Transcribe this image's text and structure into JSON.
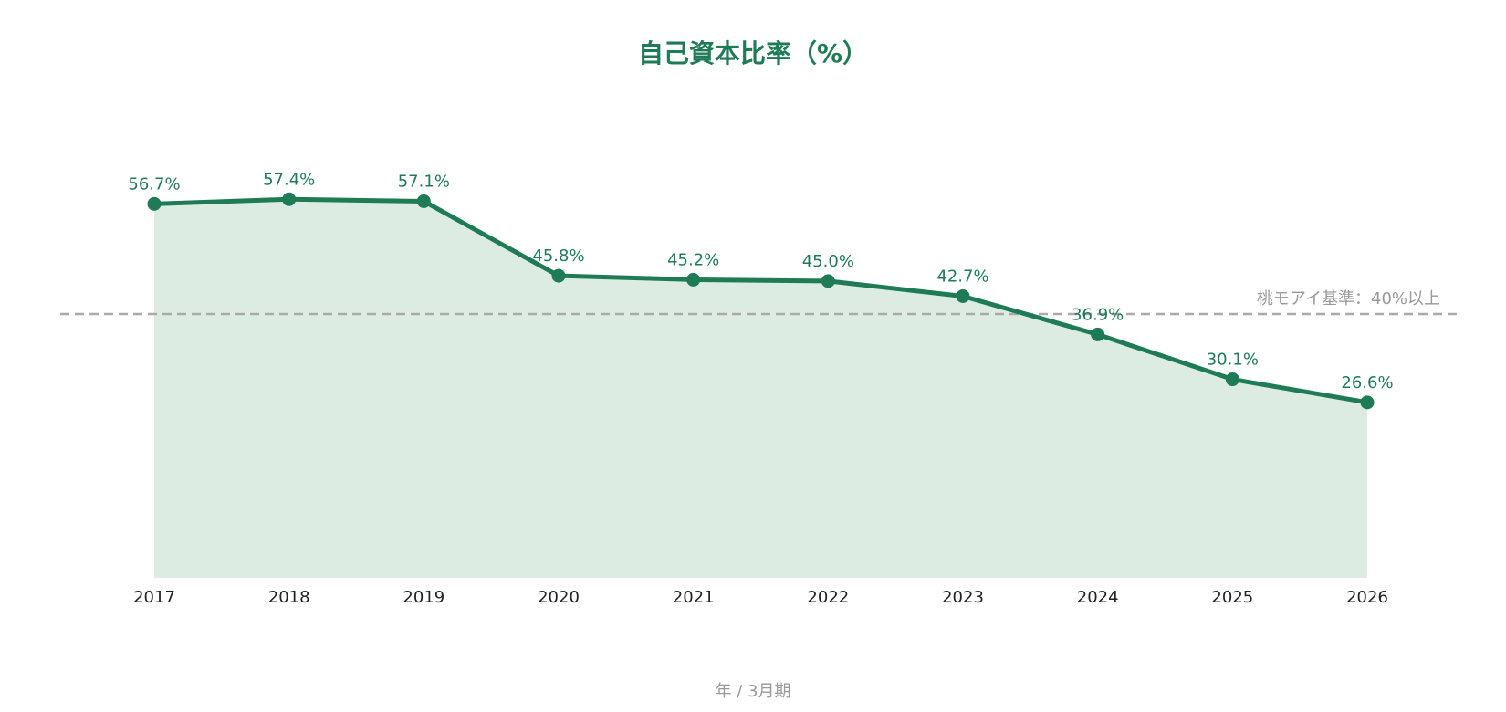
{
  "chart_data": {
    "type": "area",
    "title": "自己資本比率（%）",
    "xlabel": "年 / 3月期",
    "ylabel": "",
    "categories": [
      "2017",
      "2018",
      "2019",
      "2020",
      "2021",
      "2022",
      "2023",
      "2024",
      "2025",
      "2026"
    ],
    "series": [
      {
        "values": [
          56.7,
          57.4,
          57.1,
          45.8,
          45.2,
          45.0,
          42.7,
          36.9,
          30.1,
          26.6
        ],
        "data_labels": [
          "56.7%",
          "57.4%",
          "57.1%",
          "45.8%",
          "45.2%",
          "45.0%",
          "42.7%",
          "36.9%",
          "30.1%",
          "26.6%"
        ]
      }
    ],
    "reference_line": {
      "value": 40,
      "label": "桃モアイ基準：40%以上",
      "style": "dashed"
    },
    "ylim": [
      0,
      80
    ],
    "grid": false,
    "y_axis_visible": false,
    "colors": {
      "line": "#1e7b55",
      "fill": "#dcece3",
      "title": "#1e7b55",
      "reference_line": "#aaaaaa",
      "reference_label": "#999999",
      "axis_title": "#999999",
      "tick_labels": "#222222"
    }
  }
}
